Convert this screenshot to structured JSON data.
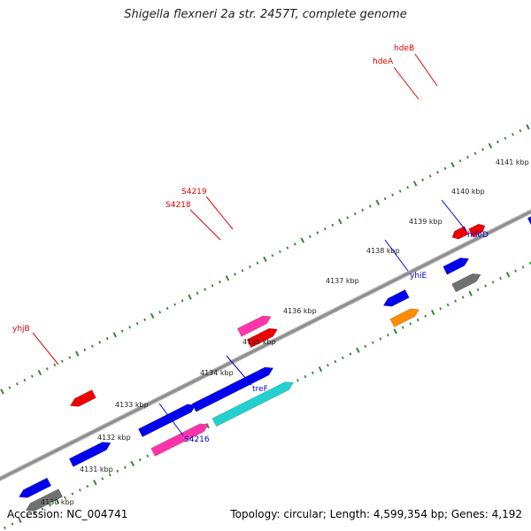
{
  "title": "Shigella flexneri 2a str. 2457T, complete genome",
  "accession": "Accession: NC_004741",
  "summary": "Topology: circular; Length: 4,599,354 bp; Genes: 4,192",
  "colors": {
    "backbone": "#8c8c8c",
    "ticks": "#2e8b2e",
    "label_top": "#e00000",
    "label_bottom": "#0000cc",
    "gene_blue": "#0000ee",
    "gene_red": "#ee0000",
    "gene_pink": "#ff33aa",
    "gene_cyan": "#22d0d0",
    "gene_gray": "#707070",
    "gene_orange": "#ff8c00"
  },
  "kbp_ticks": [
    "4130 kbp",
    "4131 kbp",
    "4132 kbp",
    "4133 kbp",
    "4134 kbp",
    "4135 kbp",
    "4136 kbp",
    "4137 kbp",
    "4138 kbp",
    "4139 kbp",
    "4140 kbp",
    "4141 kbp"
  ],
  "gene_labels": {
    "top": [
      "yhjB",
      "S4218",
      "S4219",
      "hdeA",
      "hdeB"
    ],
    "bottom": [
      "S4216",
      "treF",
      "yhiE",
      "hdeD"
    ]
  },
  "genes": [
    {
      "lane": 1,
      "color": "gene_blue"
    },
    {
      "lane": 1,
      "color": "gene_blue"
    },
    {
      "lane": 1,
      "color": "gene_blue"
    },
    {
      "lane": 1,
      "color": "gene_blue"
    },
    {
      "lane": 1,
      "color": "gene_blue"
    },
    {
      "lane": 1,
      "color": "gene_blue"
    },
    {
      "lane": 1,
      "color": "gene_blue"
    },
    {
      "lane": 2,
      "color": "gene_gray"
    },
    {
      "lane": 2,
      "color": "gene_pink"
    },
    {
      "lane": 2,
      "color": "gene_cyan"
    },
    {
      "lane": 2,
      "color": "gene_orange"
    },
    {
      "lane": 2,
      "color": "gene_gray"
    },
    {
      "lane": -1,
      "color": "gene_red"
    },
    {
      "lane": -1,
      "color": "gene_red"
    },
    {
      "lane": -1,
      "color": "gene_red"
    },
    {
      "lane": -1,
      "color": "gene_red"
    },
    {
      "lane": -2,
      "color": "gene_pink"
    }
  ]
}
